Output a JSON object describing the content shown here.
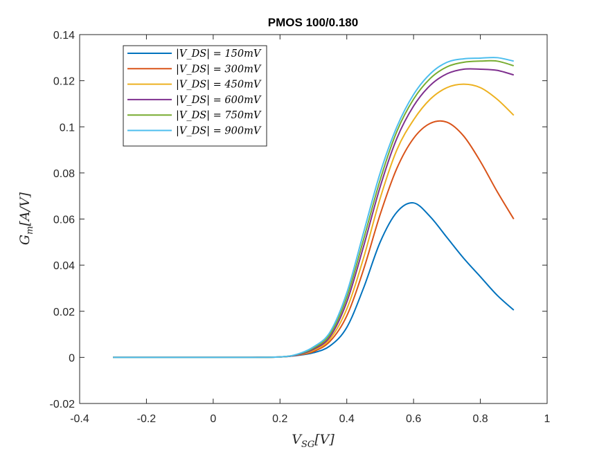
{
  "chart_data": {
    "type": "line",
    "title": "PMOS 100/0.180",
    "xlabel": "V_SG[V]",
    "ylabel": "G_m[A/V]",
    "xlim": [
      -0.4,
      1
    ],
    "ylim": [
      -0.02,
      0.14
    ],
    "xticks": [
      "-0.4",
      "-0.2",
      "0",
      "0.2",
      "0.4",
      "0.6",
      "0.8",
      "1"
    ],
    "yticks": [
      "-0.02",
      "0",
      "0.02",
      "0.04",
      "0.06",
      "0.08",
      "0.1",
      "0.12",
      "0.14"
    ],
    "grid": false,
    "legend_position": "top-left",
    "x": [
      -0.3,
      -0.2,
      -0.1,
      0.0,
      0.1,
      0.2,
      0.25,
      0.3,
      0.35,
      0.4,
      0.45,
      0.5,
      0.55,
      0.6,
      0.65,
      0.7,
      0.75,
      0.8,
      0.85,
      0.9
    ],
    "series": [
      {
        "name": "|V_DS| = 150mV",
        "color": "#0072BD",
        "values": [
          0,
          0,
          0,
          0,
          0,
          0.0002,
          0.0008,
          0.002,
          0.005,
          0.013,
          0.03,
          0.05,
          0.063,
          0.067,
          0.061,
          0.052,
          0.043,
          0.035,
          0.027,
          0.0205
        ]
      },
      {
        "name": "|V_DS| = 300mV",
        "color": "#D95319",
        "values": [
          0,
          0,
          0,
          0,
          0,
          0.0002,
          0.0009,
          0.0025,
          0.007,
          0.018,
          0.038,
          0.062,
          0.082,
          0.095,
          0.1015,
          0.102,
          0.096,
          0.085,
          0.072,
          0.06
        ]
      },
      {
        "name": "|V_DS| = 450mV",
        "color": "#EDB120",
        "values": [
          0,
          0,
          0,
          0,
          0,
          0.0002,
          0.001,
          0.003,
          0.008,
          0.021,
          0.043,
          0.069,
          0.09,
          0.103,
          0.112,
          0.117,
          0.1185,
          0.117,
          0.112,
          0.105
        ]
      },
      {
        "name": "|V_DS| = 600mV",
        "color": "#7E2F8E",
        "values": [
          0,
          0,
          0,
          0,
          0,
          0.0002,
          0.001,
          0.0035,
          0.009,
          0.024,
          0.048,
          0.074,
          0.095,
          0.109,
          0.118,
          0.123,
          0.125,
          0.125,
          0.1245,
          0.1225
        ]
      },
      {
        "name": "|V_DS| = 750mV",
        "color": "#77AC30",
        "values": [
          0,
          0,
          0,
          0,
          0,
          0.0002,
          0.0012,
          0.004,
          0.01,
          0.026,
          0.051,
          0.077,
          0.098,
          0.112,
          0.121,
          0.126,
          0.128,
          0.1285,
          0.1285,
          0.1265
        ]
      },
      {
        "name": "|V_DS| = 900mV",
        "color": "#4DBEEE",
        "values": [
          0,
          0,
          0,
          0,
          0,
          0.0002,
          0.0013,
          0.0045,
          0.011,
          0.028,
          0.054,
          0.08,
          0.1,
          0.114,
          0.123,
          0.128,
          0.1295,
          0.1298,
          0.13,
          0.1285
        ]
      }
    ]
  }
}
